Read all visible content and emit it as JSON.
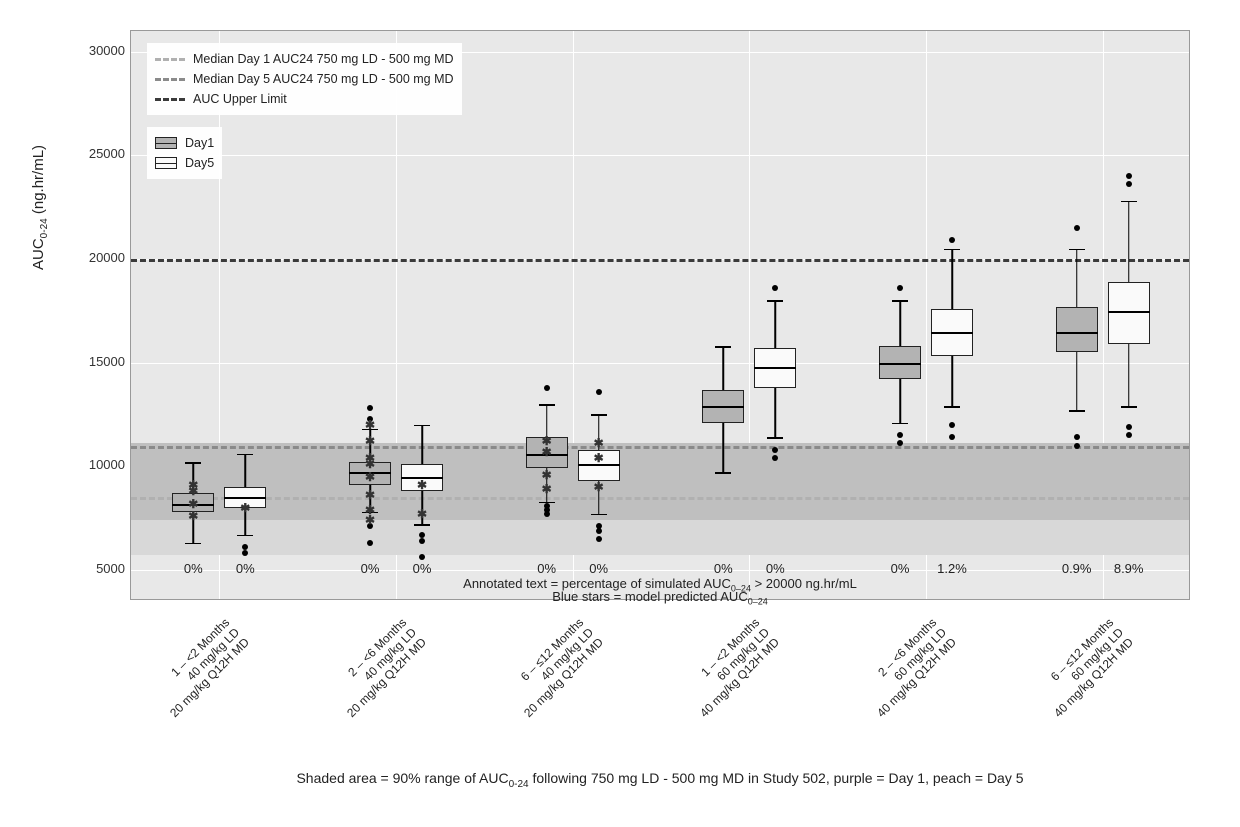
{
  "chart": {
    "type": "boxplot",
    "background_color": "#e8e8e8",
    "grid_color": "#ffffff",
    "ylabel_html": "AUC<sub>0-24</sub> (ng.hr/mL)",
    "ylim": [
      3500,
      31000
    ],
    "yticks": [
      5000,
      10000,
      15000,
      20000,
      25000,
      30000
    ],
    "ytick_labels": [
      "5000",
      "10000",
      "15000",
      "20000",
      "25000",
      "30000"
    ],
    "annotation_line1_html": "Annotated text = percentage of simulated AUC<sub>0–24</sub> > 20000 ng.hr/mL",
    "annotation_line2_html": "Blue stars = model predicted AUC<sub>0–24</sub>",
    "bottom_caption_html": "Shaded area = 90% range of AUC<sub>0-24</sub> following 750 mg LD - 500 mg MD in Study 502,  purple = Day 1,  peach = Day 5",
    "reference_bands": [
      {
        "name": "day1_90pct",
        "low": 5700,
        "high": 11000,
        "color": "#d8d8d8"
      },
      {
        "name": "day5_90pct",
        "low": 7400,
        "high": 11100,
        "color": "#bfbfbf"
      }
    ],
    "reference_lines": [
      {
        "name": "median_day1",
        "y": 8500,
        "color": "#b0b0b0",
        "width": 3,
        "dash": "8 6"
      },
      {
        "name": "median_day5",
        "y": 11000,
        "color": "#8a8a8a",
        "width": 3,
        "dash": "8 6"
      },
      {
        "name": "auc_upper_limit",
        "y": 20000,
        "color": "#3a3a3a",
        "width": 3.5,
        "dash": "10 7"
      }
    ],
    "legend_lines": {
      "items": [
        {
          "label": "Median Day 1 AUC24 750 mg LD - 500 mg MD",
          "color": "#b0b0b0"
        },
        {
          "label": "Median Day 5 AUC24 750 mg LD - 500 mg MD",
          "color": "#8a8a8a"
        },
        {
          "label": "AUC Upper Limit",
          "color": "#3a3a3a"
        }
      ]
    },
    "legend_fill": {
      "items": [
        {
          "label": "Day1",
          "fill": "#b3b3b3"
        },
        {
          "label": "Day5",
          "fill": "#fafafa"
        }
      ]
    },
    "day1_fill": "#b3b3b3",
    "day5_fill": "#fafafa",
    "box_border": "#222222",
    "categories": [
      {
        "label": "1 – <2 Months\n40 mg/kg LD\n20 mg/kg Q12H MD"
      },
      {
        "label": "2 – <6 Months\n40 mg/kg LD\n20 mg/kg Q12H MD"
      },
      {
        "label": "6 – ≤12 Months\n40 mg/kg LD\n20 mg/kg Q12H MD"
      },
      {
        "label": "1 – <2 Months\n60 mg/kg LD\n40 mg/kg Q12H MD"
      },
      {
        "label": "2 – <6 Months\n60 mg/kg LD\n40 mg/kg Q12H MD"
      },
      {
        "label": "6 – ≤12 Months\n60 mg/kg LD\n40 mg/kg Q12H MD"
      }
    ],
    "boxes": [
      {
        "group": 0,
        "series": "Day1",
        "q1": 7800,
        "median": 8200,
        "q3": 8700,
        "wlow": 6300,
        "whigh": 10200,
        "outliers": [],
        "stars": [
          8200,
          8800,
          9100,
          7600
        ],
        "percent": "0%"
      },
      {
        "group": 0,
        "series": "Day5",
        "q1": 8000,
        "median": 8500,
        "q3": 9000,
        "wlow": 6700,
        "whigh": 10600,
        "outliers": [
          5800,
          6100
        ],
        "stars": [
          8000
        ],
        "percent": "0%"
      },
      {
        "group": 1,
        "series": "Day1",
        "q1": 9100,
        "median": 9700,
        "q3": 10200,
        "wlow": 7800,
        "whigh": 11800,
        "outliers": [
          6300,
          7100,
          12300,
          12800
        ],
        "stars": [
          9500,
          10100,
          10400,
          8600,
          12000,
          11200,
          7400,
          7900
        ],
        "percent": "0%"
      },
      {
        "group": 1,
        "series": "Day5",
        "q1": 8800,
        "median": 9500,
        "q3": 10100,
        "wlow": 7200,
        "whigh": 12000,
        "outliers": [
          5600,
          6400,
          6700
        ],
        "stars": [
          9100,
          7700
        ],
        "percent": "0%"
      },
      {
        "group": 2,
        "series": "Day1",
        "q1": 9900,
        "median": 10600,
        "q3": 11400,
        "wlow": 8300,
        "whigh": 13000,
        "outliers": [
          13800,
          7700,
          7900,
          8100
        ],
        "stars": [
          10700,
          11200,
          9600,
          8900
        ],
        "percent": "0%"
      },
      {
        "group": 2,
        "series": "Day5",
        "q1": 9300,
        "median": 10100,
        "q3": 10800,
        "wlow": 7700,
        "whigh": 12500,
        "outliers": [
          6500,
          6900,
          7100,
          13600
        ],
        "stars": [
          10400,
          9000,
          11100
        ],
        "percent": "0%"
      },
      {
        "group": 3,
        "series": "Day1",
        "q1": 12100,
        "median": 12900,
        "q3": 13700,
        "wlow": 9700,
        "whigh": 15800,
        "outliers": [],
        "stars": [],
        "percent": "0%"
      },
      {
        "group": 3,
        "series": "Day5",
        "q1": 13800,
        "median": 14800,
        "q3": 15700,
        "wlow": 11400,
        "whigh": 18000,
        "outliers": [
          10400,
          10800,
          18600
        ],
        "stars": [],
        "percent": "0%"
      },
      {
        "group": 4,
        "series": "Day1",
        "q1": 14200,
        "median": 15000,
        "q3": 15800,
        "wlow": 12100,
        "whigh": 18000,
        "outliers": [
          11100,
          11500,
          18600
        ],
        "stars": [],
        "percent": "0%"
      },
      {
        "group": 4,
        "series": "Day5",
        "q1": 15300,
        "median": 16500,
        "q3": 17600,
        "wlow": 12900,
        "whigh": 20500,
        "outliers": [
          11400,
          12000,
          20900
        ],
        "stars": [],
        "percent": "1.2%"
      },
      {
        "group": 5,
        "series": "Day1",
        "q1": 15500,
        "median": 16500,
        "q3": 17700,
        "wlow": 12700,
        "whigh": 20500,
        "outliers": [
          11000,
          11400,
          21500
        ],
        "stars": [],
        "percent": "0.9%"
      },
      {
        "group": 5,
        "series": "Day5",
        "q1": 15900,
        "median": 17500,
        "q3": 18900,
        "wlow": 12900,
        "whigh": 22800,
        "outliers": [
          11500,
          11900,
          23600,
          24000
        ],
        "stars": [],
        "percent": "8.9%"
      }
    ]
  }
}
